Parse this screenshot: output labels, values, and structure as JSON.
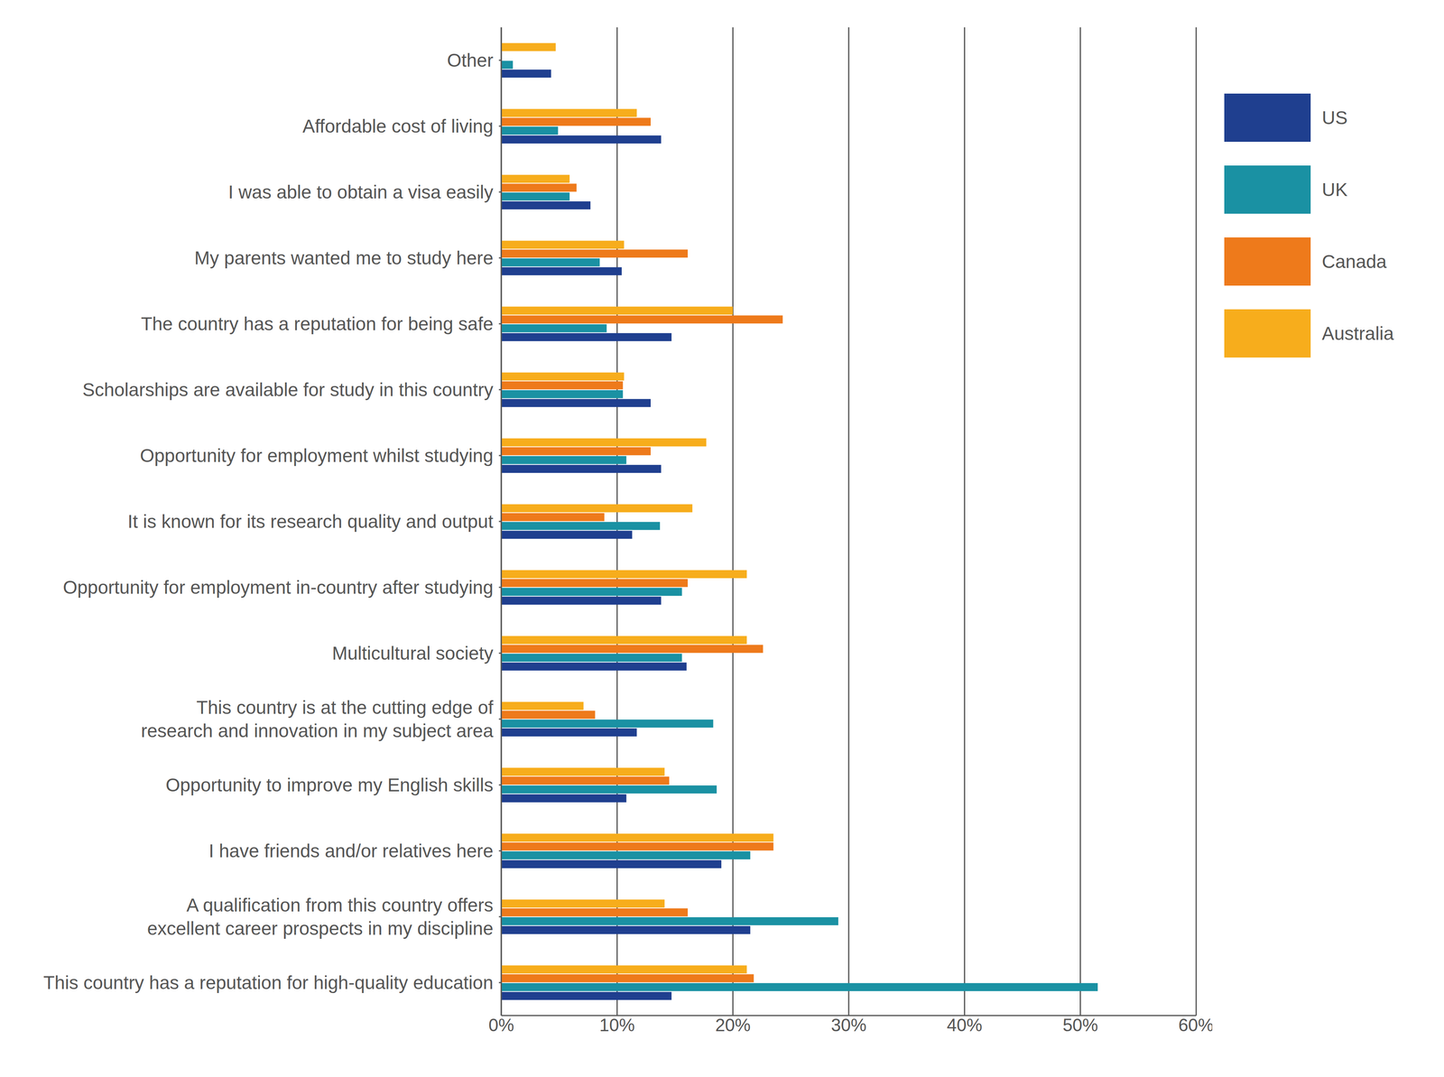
{
  "chart_data": {
    "type": "bar",
    "orientation": "horizontal",
    "grid": true,
    "legend": "right",
    "categories": [
      "Other",
      "Affordable cost of living",
      "I was able to obtain a visa easily",
      "My parents wanted me to study here",
      "The country has a reputation for being safe",
      "Scholarships are available for study in this country",
      "Opportunity for employment whilst studying",
      "It is known for its research quality and output",
      "Opportunity for employment in-country after studying",
      "Multicultural society",
      "This country is at the cutting edge of\nresearch and innovation in my subject area",
      "Opportunity to improve my English skills",
      "I have friends and/or relatives here",
      "A qualification from this country offers\nexcellent career prospects in my discipline",
      "This country has a reputation for high-quality education"
    ],
    "series": [
      {
        "name": "US",
        "color": "#1f3f8f",
        "values": [
          4.3,
          13.8,
          7.7,
          10.4,
          14.7,
          12.9,
          13.8,
          11.3,
          13.8,
          16.0,
          11.7,
          10.8,
          19.0,
          21.5,
          14.7
        ]
      },
      {
        "name": "UK",
        "color": "#1a91a3",
        "values": [
          1.0,
          4.9,
          5.9,
          8.5,
          9.1,
          10.5,
          10.8,
          13.7,
          15.6,
          15.6,
          18.3,
          18.6,
          21.5,
          29.1,
          51.5
        ]
      },
      {
        "name": "Canada",
        "color": "#ee7a1b",
        "values": [
          null,
          12.9,
          6.5,
          16.1,
          24.3,
          10.5,
          12.9,
          8.9,
          16.1,
          22.6,
          8.1,
          14.5,
          23.5,
          16.1,
          21.8
        ]
      },
      {
        "name": "Australia",
        "color": "#f7ad1c",
        "values": [
          4.7,
          11.7,
          5.9,
          10.6,
          20.0,
          10.6,
          17.7,
          16.5,
          21.2,
          21.2,
          7.1,
          14.1,
          23.5,
          14.1,
          21.2
        ]
      }
    ],
    "xlim": [
      0,
      60
    ],
    "xticks": [
      {
        "value": 0,
        "label": "0%"
      },
      {
        "value": 10,
        "label": "10%"
      },
      {
        "value": 20,
        "label": "20%"
      },
      {
        "value": 30,
        "label": "30%"
      },
      {
        "value": 40,
        "label": "40%"
      },
      {
        "value": 50,
        "label": "50%"
      },
      {
        "value": 60,
        "label": "60%"
      }
    ]
  }
}
